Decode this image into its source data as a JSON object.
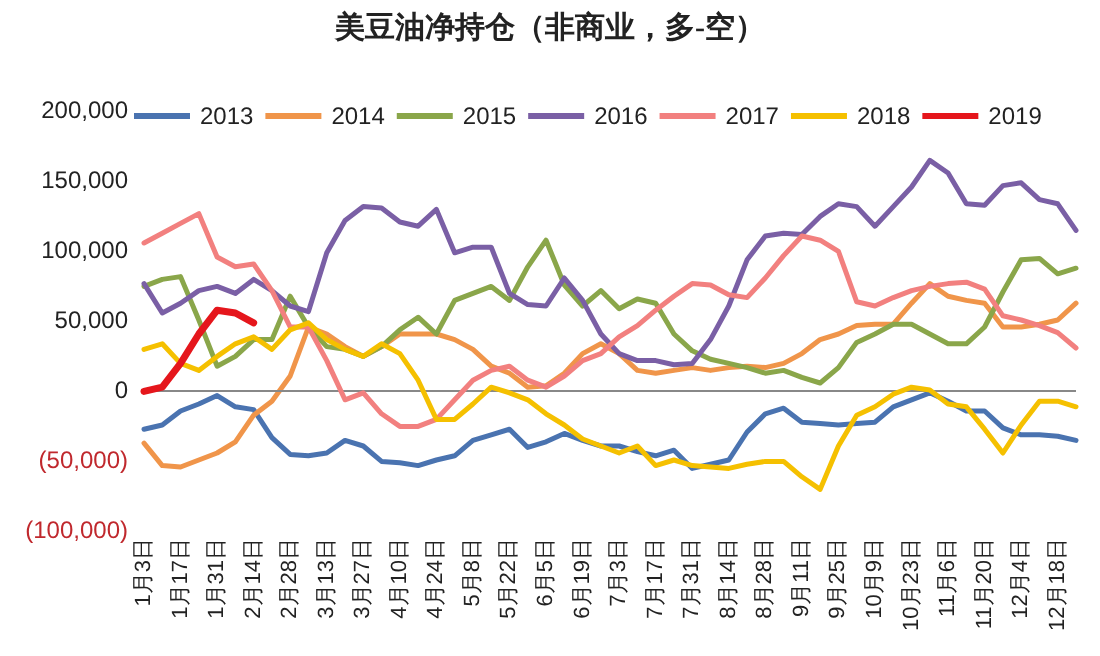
{
  "chart_data": {
    "type": "line",
    "title": "美豆油净持仓（非商业，多-空）",
    "legend": "top",
    "line_style": "solid",
    "marker": "none",
    "grid": false,
    "ref_lines": [
      {
        "axis": "y",
        "value": 0,
        "color": "#888888"
      }
    ],
    "categories": [
      "1月3日",
      null,
      "1月17日",
      null,
      "1月31日",
      null,
      "2月14日",
      null,
      "2月28日",
      null,
      "3月13日",
      null,
      "3月27日",
      null,
      "4月10日",
      null,
      "4月24日",
      null,
      "5月8日",
      null,
      "5月22日",
      null,
      "6月5日",
      null,
      "6月19日",
      null,
      "7月3日",
      null,
      "7月17日",
      null,
      "7月31日",
      null,
      "8月14日",
      null,
      "8月28日",
      null,
      "9月11日",
      null,
      "9月25日",
      null,
      "10月9日",
      null,
      "10月23日",
      null,
      "11月6日",
      null,
      "11月20日",
      null,
      "12月4日",
      null,
      "12月18日",
      null
    ],
    "ylim": [
      -100000,
      200000
    ],
    "yticks": [
      {
        "value": -100000,
        "label": "(100,000)"
      },
      {
        "value": -50000,
        "label": "(50,000)"
      },
      0,
      {
        "value": 50000,
        "label": "50,000"
      },
      {
        "value": 100000,
        "label": "100,000"
      },
      {
        "value": 150000,
        "label": "150,000"
      },
      {
        "value": 200000,
        "label": "200,000"
      }
    ],
    "series": [
      {
        "name": "2013",
        "color": "#4a73b0",
        "values": [
          -28000,
          -25000,
          -15000,
          -10000,
          -4000,
          -12000,
          -14000,
          -34000,
          -46000,
          -47000,
          -45000,
          -36000,
          -40000,
          -51000,
          -52000,
          -54000,
          -50000,
          -47000,
          -36000,
          -32000,
          -28000,
          -41000,
          -37000,
          -31000,
          -36000,
          -40000,
          -40000,
          -44000,
          -47000,
          -43000,
          -56000,
          -53000,
          -50000,
          -30000,
          -17000,
          -13000,
          -23000,
          -24000,
          -25000,
          -24000,
          -23000,
          -12000,
          -7000,
          -2000,
          -8000,
          -15000,
          -15000,
          -27000,
          -32000,
          -32000,
          -33000,
          -36000
        ]
      },
      {
        "name": "2014",
        "color": "#f0954a",
        "values": [
          -38000,
          -54000,
          -55000,
          -50000,
          -45000,
          -37000,
          -18000,
          -8000,
          10000,
          45000,
          40000,
          31000,
          24000,
          31000,
          40000,
          40000,
          40000,
          36000,
          29000,
          17000,
          12000,
          2000,
          3000,
          12000,
          26000,
          33000,
          26000,
          14000,
          12000,
          14000,
          16000,
          14000,
          16000,
          17000,
          16000,
          19000,
          26000,
          36000,
          40000,
          46000,
          47000,
          47000,
          62000,
          76000,
          67000,
          64000,
          62000,
          45000,
          45000,
          47000,
          50000,
          62000
        ]
      },
      {
        "name": "2015",
        "color": "#8aa64a",
        "values": [
          74000,
          79000,
          81000,
          50000,
          17000,
          24000,
          36000,
          36000,
          67000,
          45000,
          31000,
          29000,
          24000,
          31000,
          43000,
          52000,
          40000,
          64000,
          69000,
          74000,
          64000,
          88000,
          107000,
          75000,
          60000,
          71000,
          58000,
          65000,
          62000,
          40000,
          28000,
          22000,
          19000,
          16000,
          12000,
          14000,
          9000,
          5000,
          16000,
          34000,
          40000,
          47000,
          47000,
          40000,
          33000,
          33000,
          45000,
          70000,
          93000,
          94000,
          83000,
          87000
        ]
      },
      {
        "name": "2016",
        "color": "#7a5fa5",
        "values": [
          76000,
          55000,
          62000,
          71000,
          74000,
          69000,
          79000,
          71000,
          60000,
          56000,
          98000,
          121000,
          131000,
          130000,
          120000,
          117000,
          129000,
          98000,
          102000,
          102000,
          69000,
          61000,
          60000,
          80000,
          64000,
          40000,
          26000,
          21000,
          21000,
          18000,
          19000,
          36000,
          60000,
          93000,
          110000,
          112000,
          111000,
          124000,
          133000,
          131000,
          117000,
          131000,
          145000,
          164000,
          155000,
          133000,
          132000,
          146000,
          148000,
          136000,
          133000,
          114000
        ]
      },
      {
        "name": "2017",
        "color": "#f2807f",
        "values": [
          105000,
          112000,
          119000,
          126000,
          95000,
          88000,
          90000,
          71000,
          45000,
          45000,
          21000,
          -7000,
          -2000,
          -17000,
          -26000,
          -26000,
          -21000,
          -7000,
          7000,
          14000,
          17000,
          7000,
          2000,
          10000,
          21000,
          26000,
          38000,
          46000,
          57000,
          67000,
          76000,
          75000,
          68000,
          66000,
          80000,
          96000,
          110000,
          107000,
          99000,
          63000,
          60000,
          66000,
          71000,
          74000,
          76000,
          77000,
          72000,
          53000,
          50000,
          46000,
          41000,
          30000
        ]
      },
      {
        "name": "2018",
        "color": "#f5c000",
        "values": [
          29000,
          33000,
          19000,
          14000,
          24000,
          33000,
          38000,
          29000,
          43000,
          48000,
          36000,
          29000,
          24000,
          33000,
          26000,
          7000,
          -21000,
          -21000,
          -10000,
          2000,
          -2000,
          -7000,
          -17000,
          -25000,
          -35000,
          -40000,
          -45000,
          -40000,
          -54000,
          -50000,
          -54000,
          -55000,
          -56000,
          -53000,
          -51000,
          -51000,
          -62000,
          -71000,
          -40000,
          -18000,
          -12000,
          -3000,
          2000,
          0,
          -10000,
          -12000,
          -28000,
          -45000,
          -25000,
          -8000,
          -8000,
          -12000
        ]
      },
      {
        "name": "2019",
        "color": "#e5161c",
        "values": [
          -1000,
          2000,
          19000,
          40000,
          57000,
          55000,
          48000,
          null,
          null,
          null,
          null,
          null,
          null,
          null,
          null,
          null,
          null,
          null,
          null,
          null,
          null,
          null,
          null,
          null,
          null,
          null,
          null,
          null,
          null,
          null,
          null,
          null,
          null,
          null,
          null,
          null,
          null,
          null,
          null,
          null,
          null,
          null,
          null,
          null,
          null,
          null,
          null,
          null,
          null,
          null,
          null,
          null
        ]
      }
    ]
  }
}
